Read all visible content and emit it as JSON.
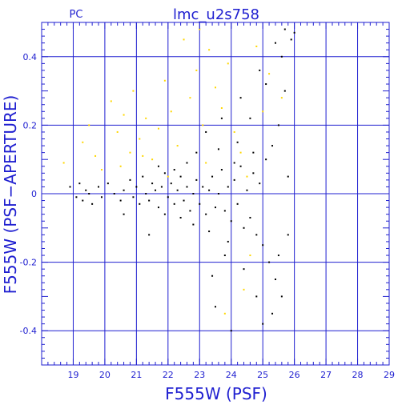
{
  "colors": {
    "axis": "#1f1fd0",
    "main_points": "#000000",
    "highlight_points": "#ffd700",
    "background": "#ffffff"
  },
  "chart_data": {
    "type": "scatter",
    "title": "lmc_u2s758",
    "corner_label": "PC",
    "xlabel": "F555W (PSF)",
    "ylabel": "F555W (PSF−APERTURE)",
    "xlim": [
      18,
      29
    ],
    "ylim": [
      -0.5,
      0.5
    ],
    "xticks": [
      19,
      20,
      21,
      22,
      23,
      24,
      25,
      26,
      27,
      28,
      29
    ],
    "yticks": [
      -0.4,
      -0.2,
      0,
      0.2,
      0.4
    ],
    "xtick_labels": [
      "19",
      "20",
      "21",
      "22",
      "23",
      "24",
      "25",
      "26",
      "27",
      "28",
      "29"
    ],
    "ytick_labels": [
      "-0.4",
      "-0.2",
      "0",
      "0.2",
      "0.4"
    ],
    "grid": true,
    "series": [
      {
        "color": "#000000",
        "points": [
          [
            18.9,
            0.02
          ],
          [
            19.1,
            -0.01
          ],
          [
            19.2,
            0.03
          ],
          [
            19.3,
            -0.02
          ],
          [
            19.4,
            0.01
          ],
          [
            19.5,
            0.0
          ],
          [
            19.6,
            -0.03
          ],
          [
            19.8,
            0.02
          ],
          [
            19.9,
            -0.01
          ],
          [
            20.1,
            0.03
          ],
          [
            20.3,
            0.0
          ],
          [
            20.5,
            -0.02
          ],
          [
            20.6,
            0.01
          ],
          [
            20.8,
            0.04
          ],
          [
            20.9,
            -0.01
          ],
          [
            21.0,
            0.02
          ],
          [
            21.1,
            -0.03
          ],
          [
            21.2,
            0.05
          ],
          [
            21.3,
            0.0
          ],
          [
            21.4,
            -0.02
          ],
          [
            21.5,
            0.03
          ],
          [
            21.6,
            0.01
          ],
          [
            21.7,
            -0.04
          ],
          [
            21.8,
            0.02
          ],
          [
            21.9,
            0.06
          ],
          [
            22.0,
            -0.01
          ],
          [
            22.1,
            0.03
          ],
          [
            22.2,
            -0.03
          ],
          [
            22.3,
            0.01
          ],
          [
            22.4,
            0.05
          ],
          [
            22.5,
            -0.02
          ],
          [
            22.6,
            0.02
          ],
          [
            22.7,
            -0.05
          ],
          [
            22.8,
            0.0
          ],
          [
            22.9,
            0.04
          ],
          [
            23.0,
            -0.03
          ],
          [
            23.1,
            0.02
          ],
          [
            23.2,
            -0.06
          ],
          [
            23.3,
            0.01
          ],
          [
            23.4,
            0.05
          ],
          [
            23.5,
            -0.04
          ],
          [
            23.6,
            0.0
          ],
          [
            23.7,
            0.07
          ],
          [
            23.8,
            -0.05
          ],
          [
            23.9,
            0.02
          ],
          [
            24.0,
            -0.08
          ],
          [
            24.1,
            0.04
          ],
          [
            24.2,
            -0.03
          ],
          [
            24.3,
            0.08
          ],
          [
            24.4,
            -0.1
          ],
          [
            24.5,
            0.01
          ],
          [
            24.6,
            -0.07
          ],
          [
            24.7,
            0.06
          ],
          [
            24.8,
            -0.12
          ],
          [
            24.9,
            0.03
          ],
          [
            25.0,
            -0.15
          ],
          [
            25.1,
            0.1
          ],
          [
            25.2,
            -0.2
          ],
          [
            25.3,
            0.14
          ],
          [
            25.4,
            -0.25
          ],
          [
            25.5,
            0.2
          ],
          [
            25.6,
            -0.3
          ],
          [
            25.7,
            0.3
          ],
          [
            25.8,
            0.05
          ],
          [
            24.2,
            0.15
          ],
          [
            24.6,
            0.22
          ],
          [
            25.1,
            0.32
          ],
          [
            25.6,
            0.4
          ],
          [
            25.9,
            0.45
          ],
          [
            25.3,
            -0.35
          ],
          [
            25.0,
            -0.38
          ],
          [
            24.8,
            -0.3
          ],
          [
            24.4,
            -0.22
          ],
          [
            23.8,
            -0.18
          ],
          [
            23.4,
            -0.24
          ],
          [
            23.5,
            -0.33
          ],
          [
            24.0,
            -0.4
          ],
          [
            21.4,
            -0.12
          ],
          [
            20.6,
            -0.06
          ],
          [
            22.6,
            0.09
          ],
          [
            22.9,
            0.12
          ],
          [
            23.2,
            0.18
          ],
          [
            23.7,
            0.22
          ],
          [
            24.3,
            0.28
          ],
          [
            24.9,
            0.36
          ],
          [
            25.4,
            0.44
          ],
          [
            25.7,
            0.48
          ],
          [
            26.0,
            0.47
          ],
          [
            25.8,
            -0.12
          ],
          [
            25.5,
            -0.18
          ],
          [
            24.7,
            0.12
          ],
          [
            24.1,
            0.09
          ],
          [
            23.6,
            0.13
          ],
          [
            22.2,
            0.07
          ],
          [
            21.7,
            0.08
          ],
          [
            21.9,
            -0.06
          ],
          [
            22.4,
            -0.07
          ],
          [
            22.8,
            -0.09
          ],
          [
            23.3,
            -0.11
          ],
          [
            23.9,
            -0.14
          ]
        ]
      },
      {
        "color": "#ffd700",
        "points": [
          [
            18.7,
            0.09
          ],
          [
            19.3,
            0.15
          ],
          [
            19.5,
            0.2
          ],
          [
            19.7,
            0.11
          ],
          [
            19.9,
            0.07
          ],
          [
            20.2,
            0.27
          ],
          [
            20.4,
            0.18
          ],
          [
            20.6,
            0.23
          ],
          [
            20.8,
            0.12
          ],
          [
            20.9,
            0.3
          ],
          [
            21.1,
            0.16
          ],
          [
            21.3,
            0.22
          ],
          [
            21.5,
            0.1
          ],
          [
            21.7,
            0.19
          ],
          [
            21.9,
            0.33
          ],
          [
            22.1,
            0.24
          ],
          [
            22.3,
            0.14
          ],
          [
            22.5,
            0.45
          ],
          [
            22.7,
            0.28
          ],
          [
            22.9,
            0.36
          ],
          [
            23.1,
            0.2
          ],
          [
            23.3,
            0.42
          ],
          [
            23.5,
            0.31
          ],
          [
            23.7,
            0.25
          ],
          [
            23.9,
            0.38
          ],
          [
            24.1,
            0.18
          ],
          [
            24.3,
            0.12
          ],
          [
            24.5,
            0.05
          ],
          [
            24.4,
            -0.28
          ],
          [
            23.8,
            -0.35
          ],
          [
            23.2,
            0.09
          ],
          [
            22.0,
            0.05
          ],
          [
            21.2,
            0.11
          ],
          [
            20.5,
            0.08
          ],
          [
            24.8,
            0.43
          ],
          [
            25.0,
            0.24
          ],
          [
            25.2,
            0.35
          ],
          [
            25.6,
            0.28
          ],
          [
            24.6,
            -0.18
          ],
          [
            23.0,
            0.48
          ]
        ]
      }
    ]
  }
}
